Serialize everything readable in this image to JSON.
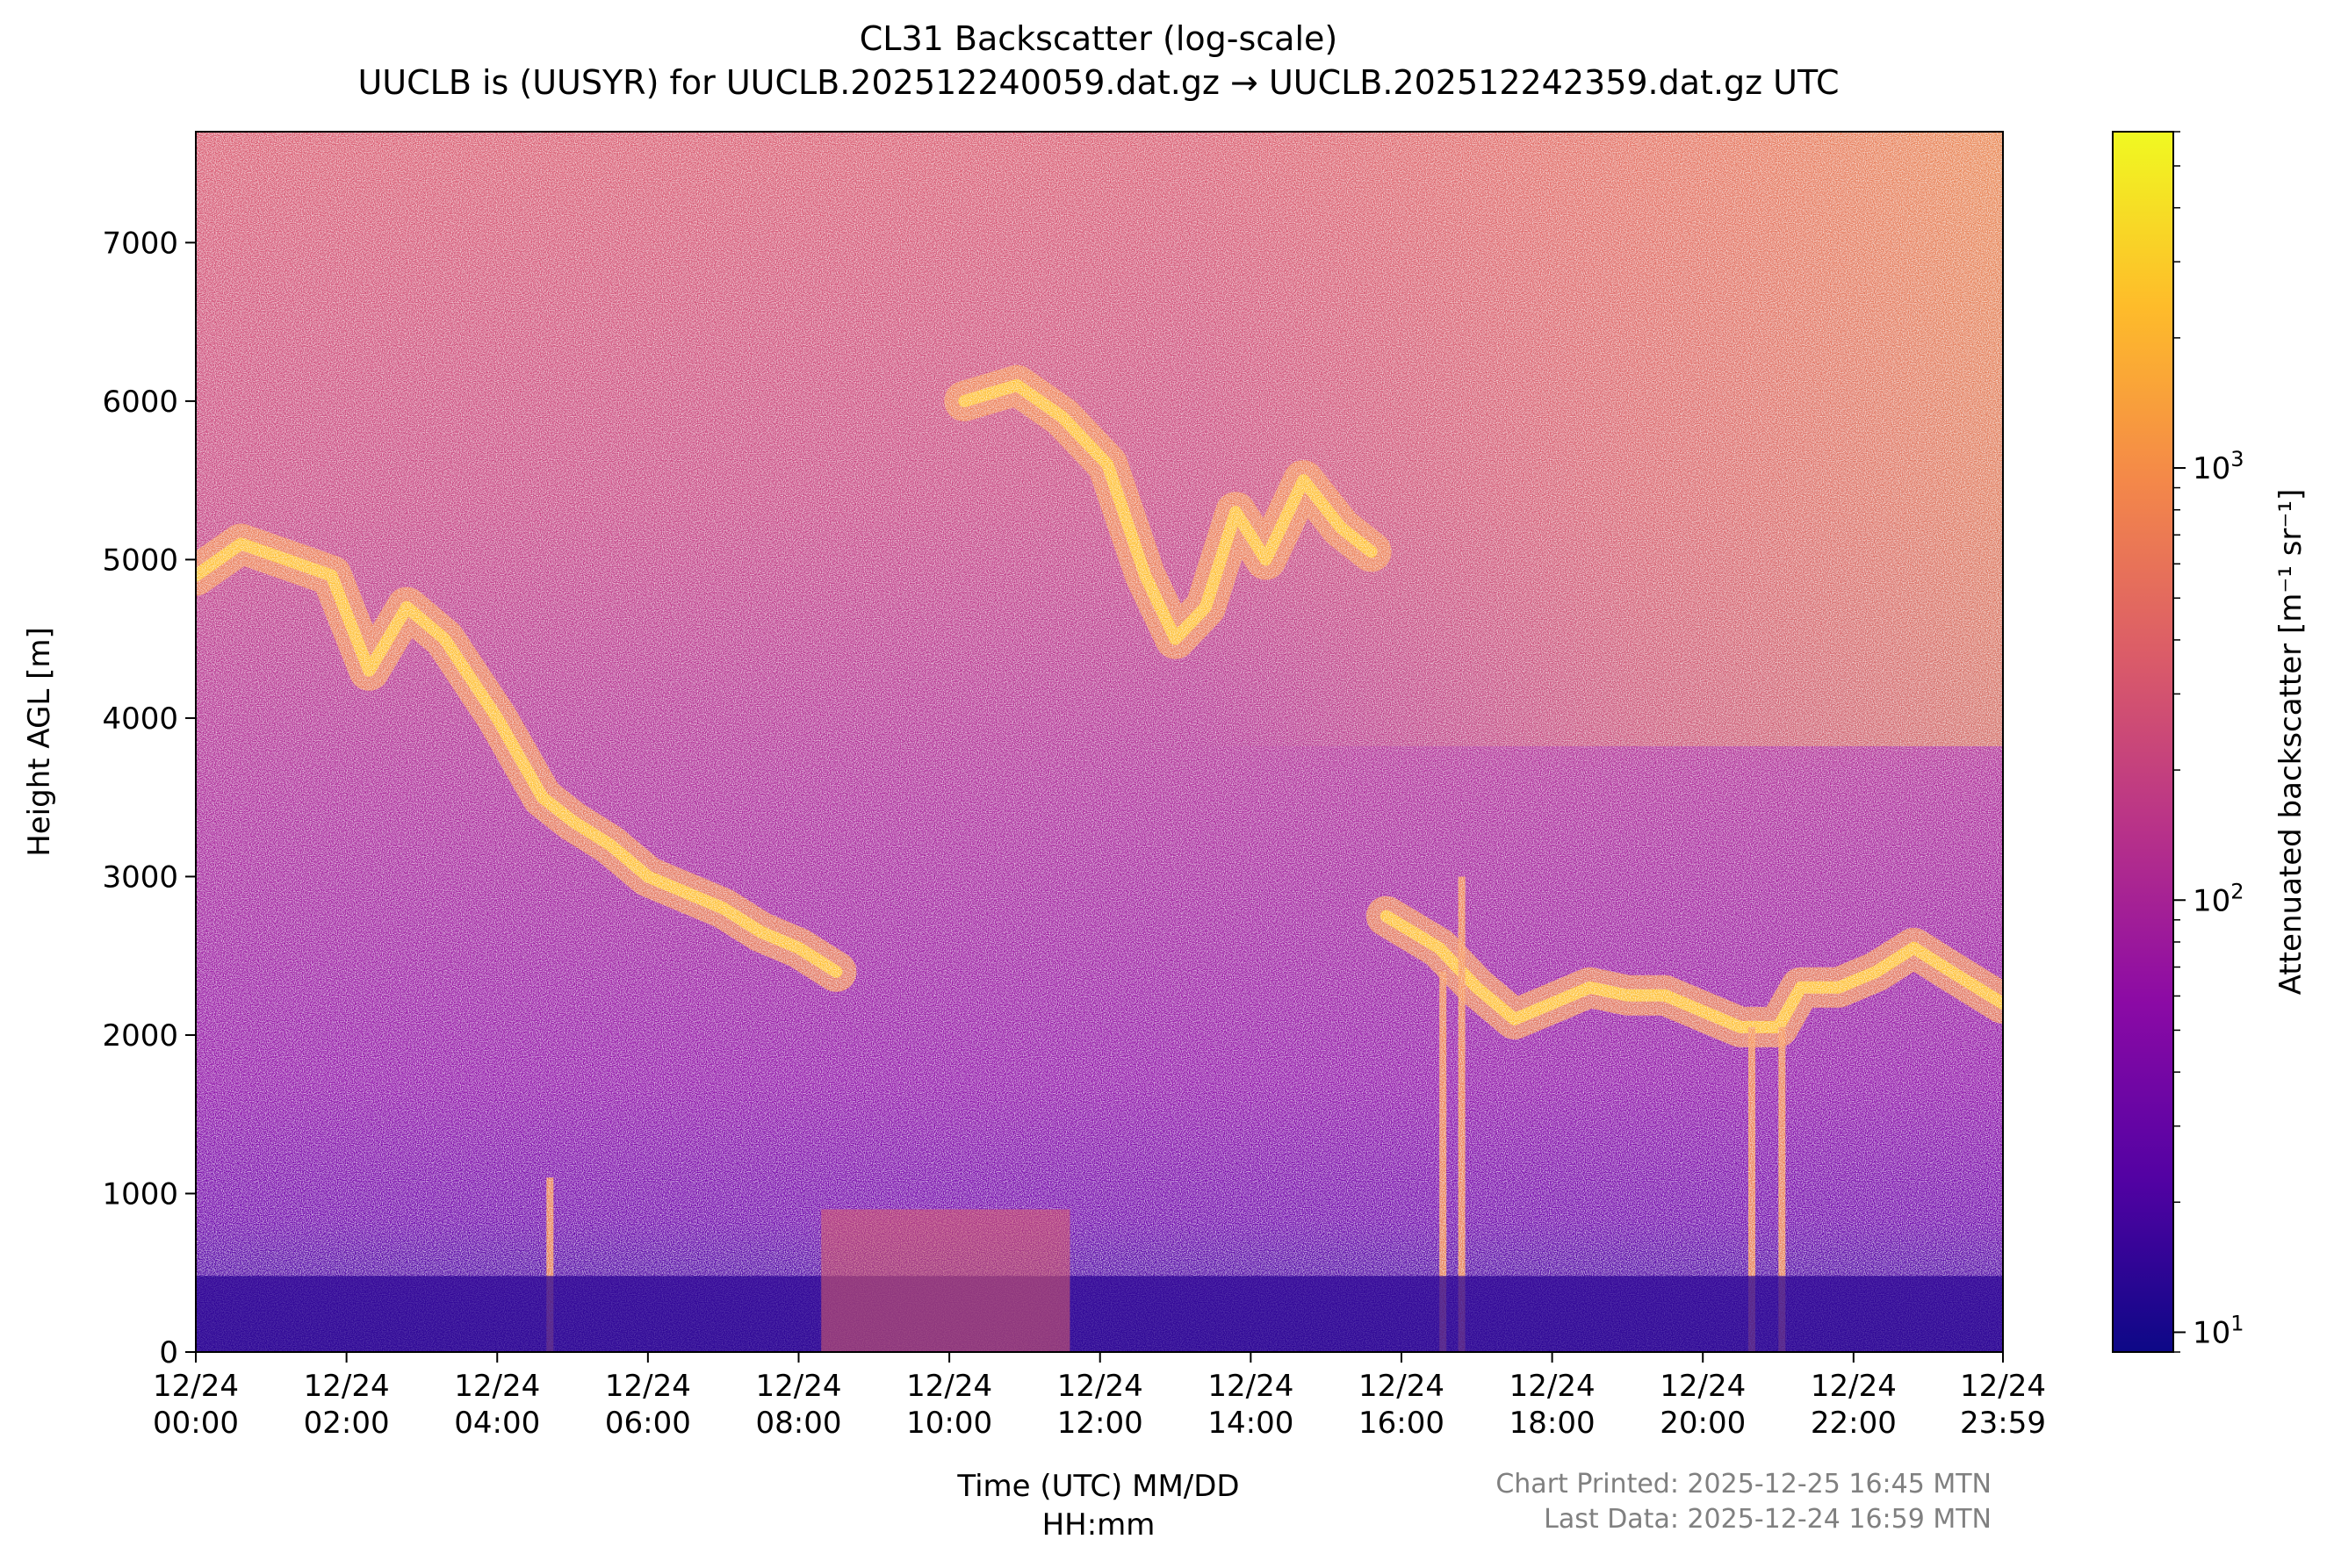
{
  "chart_data": {
    "type": "heatmap",
    "title": "CL31 Backscatter (log-scale)",
    "subtitle": "UUCLB is (UUSYR) for UUCLB.202512240059.dat.gz → UUCLB.202512242359.dat.gz UTC",
    "xlabel_line1": "Time (UTC) MM/DD",
    "xlabel_line2": "HH:mm",
    "ylabel": "Height AGL [m]",
    "colorbar_label": "Attenuated backscatter [m⁻¹ sr⁻¹]",
    "colormap": "plasma",
    "colormap_colors": [
      "#0d0887",
      "#5302a3",
      "#8b0aa5",
      "#b83289",
      "#db5c68",
      "#f48849",
      "#febc2a",
      "#f0f921"
    ],
    "x_range_hours": [
      0,
      23.983
    ],
    "ylim": [
      0,
      7700
    ],
    "yticks": [
      0,
      1000,
      2000,
      3000,
      4000,
      5000,
      6000,
      7000
    ],
    "xticks": [
      {
        "h": 0,
        "date": "12/24",
        "time": "00:00"
      },
      {
        "h": 2,
        "date": "12/24",
        "time": "02:00"
      },
      {
        "h": 4,
        "date": "12/24",
        "time": "04:00"
      },
      {
        "h": 6,
        "date": "12/24",
        "time": "06:00"
      },
      {
        "h": 8,
        "date": "12/24",
        "time": "08:00"
      },
      {
        "h": 10,
        "date": "12/24",
        "time": "10:00"
      },
      {
        "h": 12,
        "date": "12/24",
        "time": "12:00"
      },
      {
        "h": 14,
        "date": "12/24",
        "time": "14:00"
      },
      {
        "h": 16,
        "date": "12/24",
        "time": "16:00"
      },
      {
        "h": 18,
        "date": "12/24",
        "time": "18:00"
      },
      {
        "h": 20,
        "date": "12/24",
        "time": "20:00"
      },
      {
        "h": 22,
        "date": "12/24",
        "time": "22:00"
      },
      {
        "h": 23.983,
        "date": "12/24",
        "time": "23:59"
      }
    ],
    "colorbar_log_range": [
      9,
      6000
    ],
    "colorbar_ticks": [
      {
        "value": 10,
        "base": "10",
        "exp": "1"
      },
      {
        "value": 100,
        "base": "10",
        "exp": "2"
      },
      {
        "value": 1000,
        "base": "10",
        "exp": "3"
      }
    ],
    "cloud_layers": [
      {
        "name": "layer-upper-morning",
        "points": [
          [
            0,
            4900
          ],
          [
            0.6,
            5100
          ],
          [
            1.2,
            5000
          ],
          [
            1.8,
            4900
          ],
          [
            2.3,
            4300
          ],
          [
            2.8,
            4700
          ],
          [
            3.3,
            4500
          ],
          [
            4.0,
            4000
          ],
          [
            4.6,
            3500
          ],
          [
            5.0,
            3350
          ],
          [
            5.5,
            3200
          ],
          [
            6.0,
            3000
          ],
          [
            6.5,
            2900
          ],
          [
            7.0,
            2800
          ],
          [
            7.5,
            2650
          ],
          [
            8.0,
            2550
          ],
          [
            8.5,
            2400
          ]
        ]
      },
      {
        "name": "layer-high-midday",
        "points": [
          [
            10.2,
            6000
          ],
          [
            10.9,
            6100
          ],
          [
            11.5,
            5900
          ],
          [
            12.1,
            5600
          ],
          [
            12.6,
            4900
          ],
          [
            13.0,
            4500
          ],
          [
            13.4,
            4700
          ],
          [
            13.8,
            5300
          ],
          [
            14.2,
            5000
          ],
          [
            14.7,
            5500
          ],
          [
            15.2,
            5200
          ],
          [
            15.6,
            5050
          ]
        ]
      },
      {
        "name": "layer-afternoon",
        "points": [
          [
            15.8,
            2750
          ],
          [
            16.5,
            2550
          ],
          [
            17.0,
            2300
          ],
          [
            17.5,
            2100
          ],
          [
            18.0,
            2200
          ],
          [
            18.5,
            2300
          ],
          [
            19.0,
            2250
          ],
          [
            19.5,
            2250
          ],
          [
            20.0,
            2150
          ],
          [
            20.5,
            2050
          ],
          [
            21.0,
            2050
          ],
          [
            21.3,
            2300
          ],
          [
            21.8,
            2300
          ],
          [
            22.3,
            2400
          ],
          [
            22.8,
            2550
          ],
          [
            23.3,
            2400
          ],
          [
            23.98,
            2200
          ]
        ]
      }
    ],
    "fall_streaks": [
      {
        "h": 4.7,
        "top": 1100,
        "bottom": 0
      },
      {
        "h": 16.55,
        "top": 2400,
        "bottom": 0
      },
      {
        "h": 16.8,
        "top": 3000,
        "bottom": 0
      },
      {
        "h": 20.65,
        "top": 2050,
        "bottom": 0
      },
      {
        "h": 21.05,
        "top": 2050,
        "bottom": 0
      }
    ],
    "footer_printed": "Chart Printed: 2025-12-25 16:45 MTN",
    "footer_last_data": "Last Data: 2025-12-24 16:59 MTN"
  }
}
